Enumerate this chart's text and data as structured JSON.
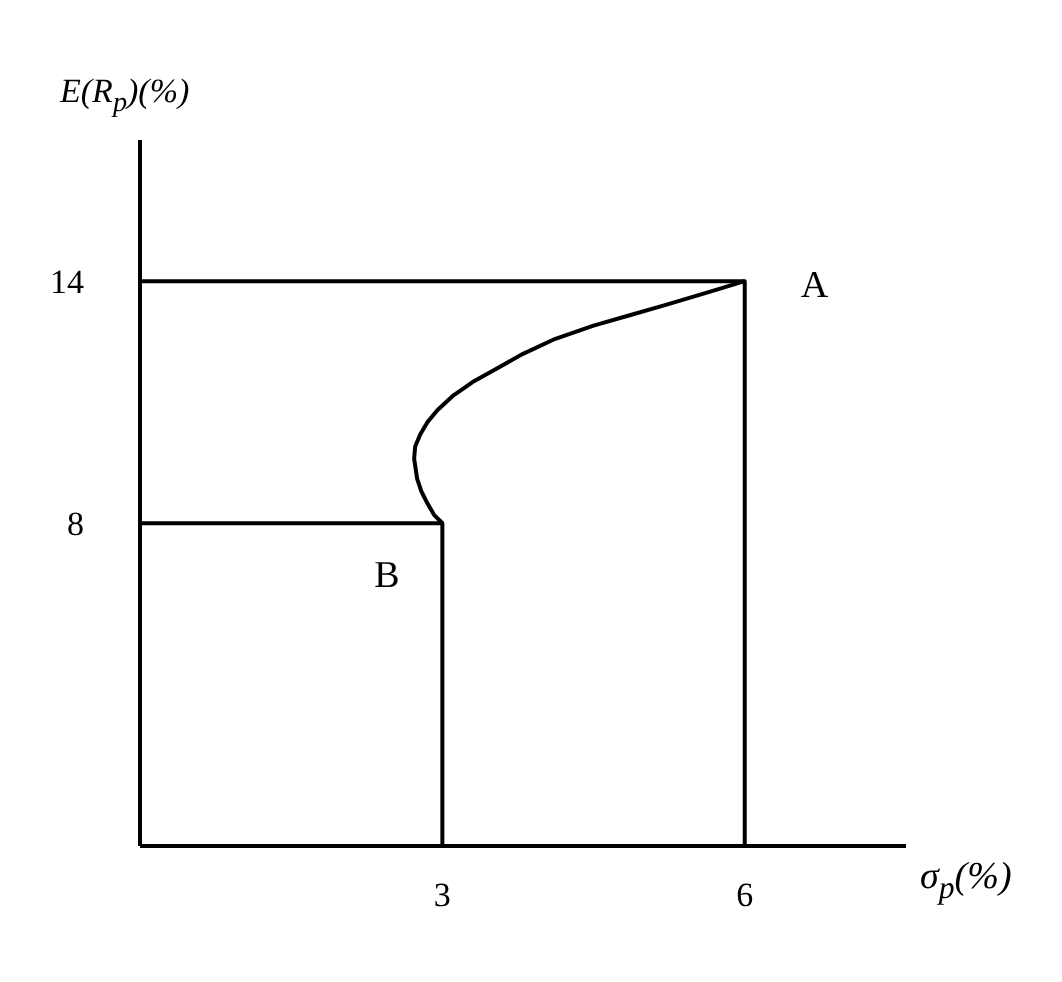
{
  "chart_data": {
    "type": "line",
    "xlabel": "σ$_{p}$(%)",
    "ylabel": "E(R$_{p}$)(%)",
    "xlim": [
      0,
      7.6
    ],
    "ylim": [
      0,
      17.5
    ],
    "xticks": [
      3,
      6
    ],
    "yticks": [
      8,
      14
    ],
    "grid": false,
    "legend": false,
    "marker": "none",
    "line_style": "solid",
    "series": [
      {
        "color": "#000000",
        "x": [
          3,
          2.92,
          2.85,
          2.79,
          2.75,
          2.72,
          2.73,
          2.78,
          2.85,
          2.95,
          3.1,
          3.3,
          3.55,
          3.8,
          4.1,
          4.5,
          4.85,
          5.2,
          5.6,
          6
        ],
        "values": [
          8,
          8.2,
          8.5,
          8.8,
          9.1,
          9.6,
          9.9,
          10.2,
          10.5,
          10.8,
          11.15,
          11.5,
          11.85,
          12.2,
          12.55,
          12.9,
          13.15,
          13.4,
          13.7,
          14
        ]
      },
      {
        "color": "#000000",
        "x": [
          0,
          6,
          6
        ],
        "values": [
          14,
          14,
          0
        ]
      },
      {
        "color": "#000000",
        "x": [
          0,
          3,
          3
        ],
        "values": [
          8,
          8,
          0
        ]
      }
    ],
    "annotations": [
      {
        "text": "A",
        "x": 6,
        "y": 14
      },
      {
        "text": "B",
        "x": 3,
        "y": 8
      }
    ]
  }
}
